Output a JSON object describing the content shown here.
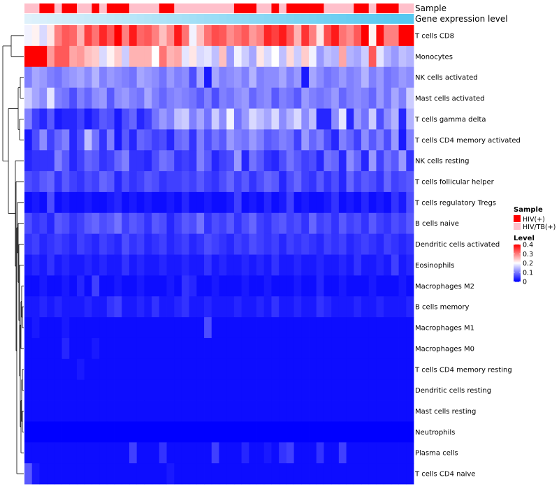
{
  "chart_data": {
    "type": "heatmap",
    "annotation_labels": {
      "sample": "Sample",
      "gene_expression": "Gene expression level"
    },
    "rows": [
      "T cells CD8",
      "Monocytes",
      "NK cells activated",
      "Mast cells activated",
      "T cells gamma delta",
      "T cells CD4 memory activated",
      "NK cells resting",
      "T cells follicular helper",
      "T cells regulatory  Tregs",
      "B cells naive",
      "Dendritic cells activated",
      "Eosinophils",
      "Macrophages M2",
      "B cells memory",
      "Macrophages M1",
      "Macrophages M0",
      "T cells CD4 memory resting",
      "Dendritic cells resting",
      "Mast cells resting",
      "Neutrophils",
      "Plasma cells",
      "T cells CD4 naive"
    ],
    "sample_groups": [
      "HIV/TB(+)",
      "HIV/TB(+)",
      "HIV(+)",
      "HIV(+)",
      "HIV/TB(+)",
      "HIV(+)",
      "HIV(+)",
      "HIV/TB(+)",
      "HIV/TB(+)",
      "HIV(+)",
      "HIV/TB(+)",
      "HIV(+)",
      "HIV(+)",
      "HIV(+)",
      "HIV/TB(+)",
      "HIV/TB(+)",
      "HIV/TB(+)",
      "HIV/TB(+)",
      "HIV(+)",
      "HIV(+)",
      "HIV/TB(+)",
      "HIV/TB(+)",
      "HIV/TB(+)",
      "HIV/TB(+)",
      "HIV/TB(+)",
      "HIV/TB(+)",
      "HIV/TB(+)",
      "HIV/TB(+)",
      "HIV(+)",
      "HIV(+)",
      "HIV(+)",
      "HIV/TB(+)",
      "HIV/TB(+)",
      "HIV(+)",
      "HIV/TB(+)",
      "HIV(+)",
      "HIV(+)",
      "HIV(+)",
      "HIV(+)",
      "HIV(+)",
      "HIV/TB(+)",
      "HIV/TB(+)",
      "HIV/TB(+)",
      "HIV/TB(+)",
      "HIV(+)",
      "HIV(+)",
      "HIV/TB(+)",
      "HIV(+)",
      "HIV(+)",
      "HIV(+)",
      "HIV/TB(+)",
      "HIV/TB(+)"
    ],
    "gene_expression_level": [
      0,
      0.02,
      0.04,
      0.06,
      0.08,
      0.1,
      0.12,
      0.14,
      0.16,
      0.18,
      0.2,
      0.22,
      0.24,
      0.26,
      0.28,
      0.3,
      0.32,
      0.34,
      0.36,
      0.38,
      0.4,
      0.42,
      0.44,
      0.46,
      0.48,
      0.5,
      0.52,
      0.54,
      0.56,
      0.58,
      0.6,
      0.62,
      0.64,
      0.66,
      0.68,
      0.7,
      0.72,
      0.74,
      0.76,
      0.78,
      0.8,
      0.82,
      0.84,
      0.86,
      0.88,
      0.9,
      0.92,
      0.94,
      0.96,
      0.98,
      1,
      1
    ],
    "values": [
      [
        0.19,
        0.21,
        0.17,
        0.22,
        0.3,
        0.33,
        0.32,
        0.26,
        0.35,
        0.31,
        0.37,
        0.33,
        0.4,
        0.3,
        0.38,
        0.32,
        0.33,
        0.3,
        0.25,
        0.29,
        0.38,
        0.31,
        0.19,
        0.25,
        0.31,
        0.34,
        0.33,
        0.29,
        0.31,
        0.33,
        0.28,
        0.3,
        0.37,
        0.35,
        0.38,
        0.33,
        0.26,
        0.36,
        0.3,
        0.22,
        0.34,
        0.38,
        0.31,
        0.29,
        0.33,
        0.42,
        0.21,
        0.39,
        0.3,
        0.3,
        0.4,
        0.4
      ],
      [
        0.42,
        0.4,
        0.42,
        0.28,
        0.33,
        0.33,
        0.27,
        0.28,
        0.25,
        0.24,
        0.17,
        0.21,
        0.24,
        0.16,
        0.26,
        0.26,
        0.26,
        0.2,
        0.31,
        0.26,
        0.27,
        0.18,
        0.22,
        0.17,
        0.18,
        0.15,
        0.25,
        0.12,
        0.19,
        0.16,
        0.13,
        0.22,
        0.17,
        0.2,
        0.15,
        0.23,
        0.16,
        0.24,
        0.19,
        0.12,
        0.15,
        0.14,
        0.27,
        0.14,
        0.13,
        0.16,
        0.33,
        0.18,
        0.14,
        0.12,
        0.15,
        0.14
      ],
      [
        0.1,
        0.13,
        0.12,
        0.1,
        0.09,
        0.11,
        0.12,
        0.13,
        0.11,
        0.14,
        0.1,
        0.12,
        0.11,
        0.1,
        0.09,
        0.13,
        0.12,
        0.11,
        0.09,
        0.12,
        0.1,
        0.11,
        0.06,
        0.13,
        0.02,
        0.13,
        0.1,
        0.11,
        0.12,
        0.1,
        0.14,
        0.1,
        0.11,
        0.11,
        0.13,
        0.1,
        0.12,
        0.02,
        0.13,
        0.11,
        0.09,
        0.1,
        0.12,
        0.1,
        0.11,
        0.14,
        0.1,
        0.12,
        0.09,
        0.1,
        0.12,
        0.11
      ],
      [
        0.16,
        0.13,
        0.11,
        0.18,
        0.1,
        0.09,
        0.06,
        0.1,
        0.08,
        0.11,
        0.12,
        0.07,
        0.11,
        0.12,
        0.1,
        0.09,
        0.13,
        0.1,
        0.08,
        0.1,
        0.11,
        0.1,
        0.09,
        0.07,
        0.1,
        0.06,
        0.1,
        0.09,
        0.11,
        0.12,
        0.08,
        0.1,
        0.11,
        0.07,
        0.1,
        0.09,
        0.07,
        0.12,
        0.1,
        0.09,
        0.1,
        0.12,
        0.08,
        0.1,
        0.11,
        0.1,
        0.08,
        0.12,
        0.09,
        0.13,
        0.1,
        0.16
      ],
      [
        0.1,
        0.05,
        0.03,
        0.07,
        0.02,
        0.03,
        0.03,
        0.05,
        0.02,
        0.04,
        0.07,
        0.06,
        0.02,
        0.06,
        0.08,
        0.03,
        0.05,
        0.09,
        0.12,
        0.1,
        0.15,
        0.16,
        0.1,
        0.13,
        0.09,
        0.16,
        0.11,
        0.19,
        0.09,
        0.12,
        0.17,
        0.15,
        0.13,
        0.17,
        0.11,
        0.14,
        0.17,
        0.11,
        0.15,
        0.03,
        0.03,
        0.11,
        0.18,
        0.03,
        0.12,
        0.09,
        0.16,
        0.06,
        0.11,
        0.14,
        0.03,
        0.14
      ],
      [
        0.02,
        0.06,
        0.11,
        0.05,
        0.08,
        0.1,
        0.03,
        0.06,
        0.15,
        0.09,
        0.04,
        0.1,
        0.02,
        0.07,
        0.03,
        0.08,
        0.07,
        0.05,
        0.06,
        0.03,
        0.08,
        0.09,
        0.04,
        0.1,
        0.06,
        0.09,
        0.07,
        0.12,
        0.1,
        0.09,
        0.12,
        0.1,
        0.07,
        0.08,
        0.1,
        0.09,
        0.05,
        0.12,
        0.08,
        0.1,
        0.06,
        0.03,
        0.1,
        0.08,
        0.05,
        0.11,
        0.07,
        0.1,
        0.06,
        0.12,
        0.02,
        0.1
      ],
      [
        0.03,
        0.04,
        0.04,
        0.04,
        0.1,
        0.07,
        0.03,
        0.05,
        0.08,
        0.07,
        0.04,
        0.05,
        0.08,
        0.1,
        0.04,
        0.04,
        0.03,
        0.06,
        0.09,
        0.08,
        0.04,
        0.05,
        0.04,
        0.1,
        0.07,
        0.03,
        0.05,
        0.06,
        0.12,
        0.03,
        0.09,
        0.07,
        0.04,
        0.03,
        0.06,
        0.09,
        0.07,
        0.05,
        0.06,
        0.03,
        0.09,
        0.08,
        0.03,
        0.11,
        0.08,
        0.03,
        0.12,
        0.05,
        0.09,
        0.07,
        0.12,
        0.04
      ],
      [
        0.06,
        0.05,
        0.07,
        0.08,
        0.04,
        0.07,
        0.05,
        0.04,
        0.06,
        0.05,
        0.08,
        0.07,
        0.03,
        0.06,
        0.04,
        0.05,
        0.07,
        0.06,
        0.04,
        0.05,
        0.05,
        0.06,
        0.05,
        0.07,
        0.05,
        0.04,
        0.06,
        0.08,
        0.05,
        0.07,
        0.04,
        0.06,
        0.08,
        0.07,
        0.03,
        0.06,
        0.08,
        0.05,
        0.04,
        0.07,
        0.04,
        0.06,
        0.03,
        0.08,
        0.05,
        0.07,
        0.06,
        0.04,
        0.08,
        0.05,
        0.06,
        0.07
      ],
      [
        0.01,
        0.02,
        0.01,
        0.06,
        0.01,
        0.02,
        0.01,
        0.01,
        0.02,
        0.01,
        0.01,
        0.02,
        0.03,
        0.01,
        0.02,
        0.01,
        0.02,
        0.01,
        0.01,
        0.02,
        0.01,
        0.03,
        0.01,
        0.01,
        0.02,
        0.01,
        0.01,
        0.02,
        0.05,
        0.01,
        0.02,
        0.01,
        0.03,
        0.01,
        0.02,
        0.05,
        0.01,
        0.02,
        0.01,
        0.01,
        0.02,
        0.04,
        0.01,
        0.02,
        0.01,
        0.03,
        0.01,
        0.02,
        0.01,
        0.04,
        0.02,
        0.06
      ],
      [
        0.06,
        0.04,
        0.05,
        0.03,
        0.07,
        0.06,
        0.04,
        0.05,
        0.07,
        0.08,
        0.06,
        0.07,
        0.09,
        0.05,
        0.07,
        0.06,
        0.04,
        0.07,
        0.06,
        0.03,
        0.05,
        0.07,
        0.06,
        0.09,
        0.04,
        0.06,
        0.05,
        0.07,
        0.04,
        0.06,
        0.08,
        0.05,
        0.04,
        0.06,
        0.07,
        0.05,
        0.06,
        0.04,
        0.08,
        0.05,
        0.06,
        0.04,
        0.07,
        0.05,
        0.06,
        0.04,
        0.07,
        0.05,
        0.04,
        0.06,
        0.05,
        0.07
      ],
      [
        0.04,
        0.05,
        0.03,
        0.04,
        0.05,
        0.04,
        0.03,
        0.05,
        0.04,
        0.03,
        0.05,
        0.04,
        0.03,
        0.06,
        0.04,
        0.05,
        0.03,
        0.04,
        0.05,
        0.03,
        0.04,
        0.05,
        0.03,
        0.04,
        0.06,
        0.05,
        0.04,
        0.03,
        0.05,
        0.04,
        0.06,
        0.05,
        0.04,
        0.05,
        0.03,
        0.05,
        0.04,
        0.05,
        0.04,
        0.03,
        0.05,
        0.04,
        0.05,
        0.03,
        0.04,
        0.05,
        0.04,
        0.03,
        0.05,
        0.04,
        0.03,
        0.04
      ],
      [
        0.02,
        0.03,
        0.02,
        0.04,
        0.02,
        0.03,
        0.02,
        0.02,
        0.03,
        0.02,
        0.03,
        0.02,
        0.02,
        0.04,
        0.02,
        0.03,
        0.02,
        0.02,
        0.03,
        0.02,
        0.02,
        0.03,
        0.02,
        0.02,
        0.04,
        0.02,
        0.03,
        0.02,
        0.02,
        0.03,
        0.02,
        0.03,
        0.02,
        0.04,
        0.02,
        0.02,
        0.03,
        0.02,
        0.02,
        0.03,
        0.02,
        0.02,
        0.03,
        0.02,
        0.04,
        0.02,
        0.02,
        0.03,
        0.02,
        0.05,
        0.02,
        0.03
      ],
      [
        0.01,
        0.01,
        0.02,
        0.01,
        0.01,
        0.02,
        0.01,
        0.03,
        0.01,
        0.05,
        0.01,
        0.01,
        0.02,
        0.01,
        0.01,
        0.02,
        0.01,
        0.01,
        0.01,
        0.02,
        0.01,
        0.04,
        0.03,
        0.01,
        0.01,
        0.02,
        0.01,
        0.01,
        0.01,
        0.02,
        0.01,
        0.01,
        0.02,
        0.01,
        0.01,
        0.01,
        0.02,
        0.01,
        0.01,
        0.03,
        0.01,
        0.01,
        0.02,
        0.01,
        0.01,
        0.01,
        0.02,
        0.01,
        0.01,
        0.01,
        0.02,
        0.01
      ],
      [
        0.02,
        0.02,
        0.03,
        0.02,
        0.03,
        0.02,
        0.02,
        0.02,
        0.03,
        0.02,
        0.02,
        0.04,
        0.05,
        0.02,
        0.02,
        0.03,
        0.02,
        0.04,
        0.02,
        0.02,
        0.03,
        0.04,
        0.02,
        0.02,
        0.03,
        0.02,
        0.02,
        0.02,
        0.03,
        0.02,
        0.02,
        0.03,
        0.02,
        0.04,
        0.02,
        0.02,
        0.03,
        0.02,
        0.02,
        0.04,
        0.03,
        0.02,
        0.02,
        0.02,
        0.03,
        0.02,
        0.02,
        0.03,
        0.02,
        0.02,
        0.02,
        0.03
      ],
      [
        0.01,
        0.02,
        0.01,
        0.01,
        0.01,
        0.02,
        0.01,
        0.01,
        0.01,
        0.01,
        0.01,
        0.01,
        0.01,
        0.01,
        0.01,
        0.01,
        0.01,
        0.01,
        0.01,
        0.01,
        0.01,
        0.01,
        0.01,
        0.01,
        0.06,
        0.01,
        0.01,
        0.01,
        0.01,
        0.01,
        0.01,
        0.01,
        0.01,
        0.01,
        0.01,
        0.01,
        0.01,
        0.01,
        0.01,
        0.01,
        0.01,
        0.01,
        0.01,
        0.01,
        0.01,
        0.01,
        0.01,
        0.01,
        0.01,
        0.01,
        0.01,
        0.01
      ],
      [
        0.01,
        0.01,
        0.01,
        0.01,
        0.01,
        0.03,
        0.01,
        0.01,
        0.01,
        0.02,
        0.01,
        0.01,
        0.01,
        0.01,
        0.01,
        0.01,
        0.01,
        0.01,
        0.01,
        0.01,
        0.01,
        0.01,
        0.01,
        0.01,
        0.01,
        0.01,
        0.01,
        0.01,
        0.01,
        0.01,
        0.01,
        0.01,
        0.01,
        0.01,
        0.01,
        0.01,
        0.01,
        0.01,
        0.01,
        0.01,
        0.01,
        0.01,
        0.01,
        0.01,
        0.01,
        0.01,
        0.01,
        0.01,
        0.01,
        0.01,
        0.01,
        0.01
      ],
      [
        0.01,
        0.01,
        0.01,
        0.01,
        0.01,
        0.01,
        0.01,
        0.02,
        0.01,
        0.01,
        0.01,
        0.01,
        0.01,
        0.01,
        0.01,
        0.01,
        0.01,
        0.01,
        0.01,
        0.01,
        0.01,
        0.01,
        0.01,
        0.01,
        0.01,
        0.01,
        0.01,
        0.01,
        0.01,
        0.01,
        0.01,
        0.01,
        0.01,
        0.01,
        0.01,
        0.01,
        0.01,
        0.01,
        0.01,
        0.01,
        0.01,
        0.01,
        0.01,
        0.01,
        0.01,
        0.01,
        0.01,
        0.01,
        0.01,
        0.01,
        0.01,
        0.01
      ],
      [
        0.01,
        0.01,
        0.01,
        0.01,
        0.01,
        0.01,
        0.01,
        0.01,
        0.01,
        0.01,
        0.01,
        0.01,
        0.01,
        0.01,
        0.01,
        0.01,
        0.01,
        0.01,
        0.01,
        0.01,
        0.01,
        0.01,
        0.01,
        0.01,
        0.01,
        0.01,
        0.01,
        0.01,
        0.01,
        0.01,
        0.01,
        0.01,
        0.01,
        0.01,
        0.01,
        0.01,
        0.01,
        0.01,
        0.01,
        0.01,
        0.01,
        0.01,
        0.01,
        0.01,
        0.01,
        0.01,
        0.01,
        0.01,
        0.01,
        0.01,
        0.01,
        0.01
      ],
      [
        0.01,
        0.01,
        0.01,
        0.01,
        0.01,
        0.01,
        0.01,
        0.01,
        0.01,
        0.01,
        0.01,
        0.01,
        0.01,
        0.01,
        0.01,
        0.01,
        0.01,
        0.01,
        0.01,
        0.01,
        0.01,
        0.01,
        0.01,
        0.01,
        0.01,
        0.01,
        0.01,
        0.01,
        0.01,
        0.01,
        0.01,
        0.01,
        0.01,
        0.01,
        0.01,
        0.01,
        0.01,
        0.01,
        0.01,
        0.01,
        0.01,
        0.01,
        0.01,
        0.01,
        0.01,
        0.01,
        0.01,
        0.01,
        0.01,
        0.01,
        0.01,
        0.01
      ],
      [
        0,
        0,
        0,
        0,
        0,
        0,
        0,
        0,
        0,
        0,
        0,
        0,
        0,
        0,
        0,
        0,
        0,
        0,
        0,
        0,
        0,
        0,
        0,
        0,
        0,
        0,
        0,
        0,
        0,
        0,
        0,
        0,
        0,
        0,
        0,
        0,
        0,
        0,
        0,
        0,
        0,
        0,
        0,
        0,
        0,
        0,
        0,
        0,
        0,
        0,
        0,
        0
      ],
      [
        0.01,
        0.01,
        0.01,
        0.01,
        0.01,
        0.01,
        0.01,
        0.01,
        0.01,
        0.01,
        0.01,
        0.01,
        0.01,
        0.01,
        0.05,
        0.01,
        0.01,
        0.01,
        0.04,
        0.01,
        0.01,
        0.01,
        0.01,
        0.01,
        0.01,
        0.05,
        0.01,
        0.01,
        0.01,
        0.03,
        0.01,
        0.01,
        0.02,
        0.01,
        0.04,
        0.05,
        0.01,
        0.01,
        0.01,
        0.04,
        0.01,
        0.01,
        0.05,
        0.01,
        0.01,
        0.01,
        0.01,
        0.01,
        0.01,
        0.01,
        0.01,
        0.01
      ],
      [
        0.07,
        0.02,
        0.01,
        0.01,
        0.01,
        0.01,
        0.01,
        0.01,
        0.01,
        0.01,
        0.01,
        0.01,
        0.01,
        0.01,
        0.01,
        0.01,
        0.01,
        0.01,
        0.01,
        0.02,
        0.01,
        0.01,
        0.01,
        0.01,
        0.01,
        0.01,
        0.01,
        0.01,
        0.01,
        0.01,
        0.01,
        0.01,
        0.01,
        0.01,
        0.01,
        0.01,
        0.01,
        0.01,
        0.01,
        0.01,
        0.01,
        0.01,
        0.01,
        0.01,
        0.01,
        0.01,
        0.01,
        0.01,
        0.01,
        0.01,
        0.01,
        0.01
      ]
    ],
    "legend": {
      "sample": {
        "title": "Sample",
        "entries": [
          "HIV(+)",
          "HIV/TB(+)"
        ],
        "colors": [
          "#ff0000",
          "#ffc0cb"
        ]
      },
      "level": {
        "title": "Level",
        "ticks": [
          "0.4",
          "0.3",
          "0.2",
          "0.1",
          "0"
        ],
        "tick_values": [
          0.4,
          0.3,
          0.2,
          0.1,
          0
        ],
        "range": [
          0,
          0.4
        ]
      }
    },
    "colors": {
      "low": "#0000ff",
      "mid": "#ffffff",
      "high": "#ff0000",
      "gene_low": "#dff1fb",
      "gene_high": "#56c8f0"
    }
  }
}
